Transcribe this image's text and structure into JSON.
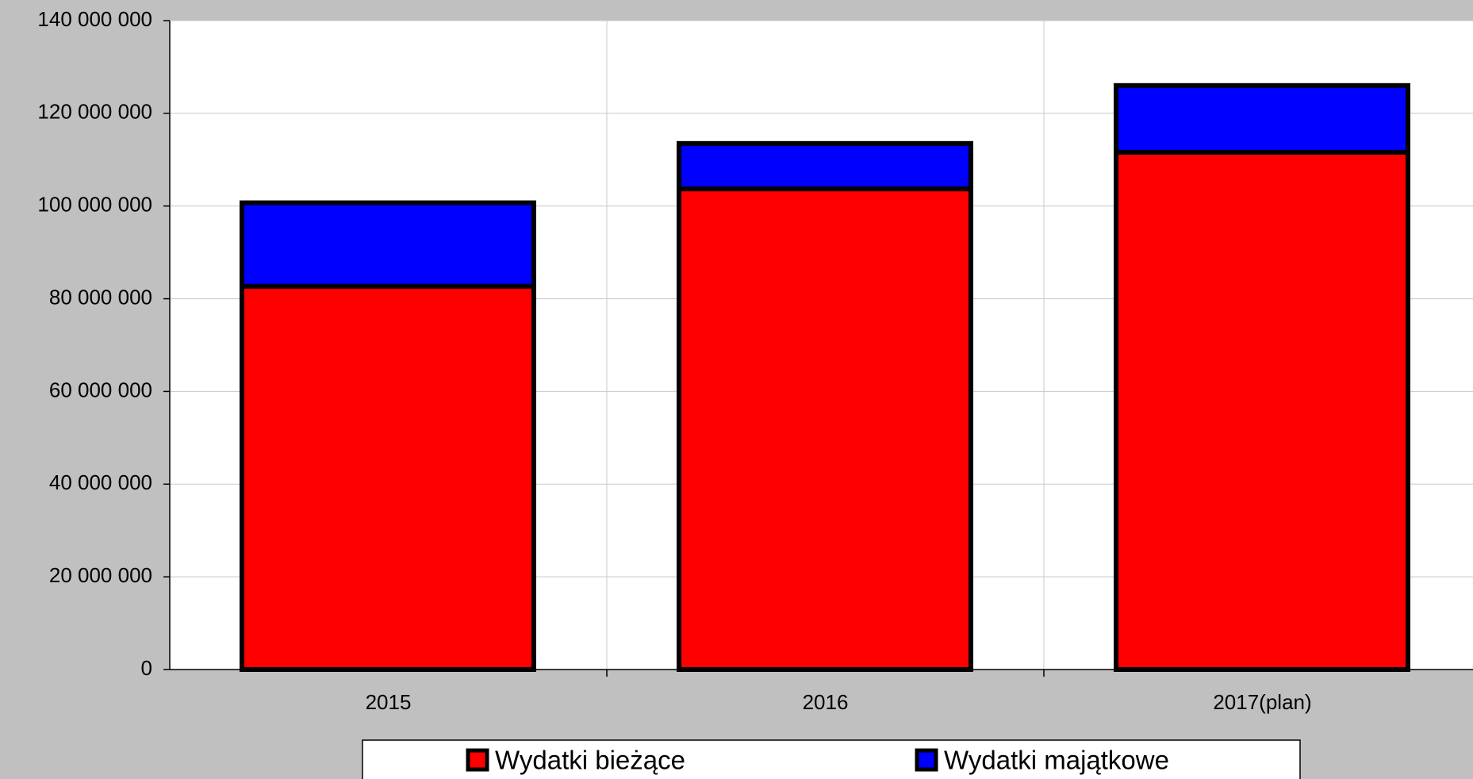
{
  "chart_data": {
    "type": "stacked_bar",
    "categories": [
      "2015",
      "2016",
      "2017(plan)"
    ],
    "series": [
      {
        "name": "Wydatki bieżące",
        "color": "#ff0000",
        "values": [
          82700000,
          103700000,
          111600000
        ]
      },
      {
        "name": "Wydatki majątkowe",
        "color": "#0000ff",
        "values": [
          18000000,
          9800000,
          14400000
        ]
      }
    ],
    "ylim": [
      0,
      140000000
    ],
    "yticks": [
      0,
      {
        "value": 20000000,
        "label": "20 000 000"
      },
      {
        "value": 40000000,
        "label": "40 000 000"
      },
      {
        "value": 60000000,
        "label": "60 000 000"
      },
      {
        "value": 80000000,
        "label": "80 000 000"
      },
      {
        "value": 100000000,
        "label": "100 000 000"
      },
      {
        "value": 120000000,
        "label": "120 000 000"
      },
      {
        "value": 140000000,
        "label": "140 000 000"
      }
    ],
    "grid": true,
    "legend": "bottom"
  }
}
